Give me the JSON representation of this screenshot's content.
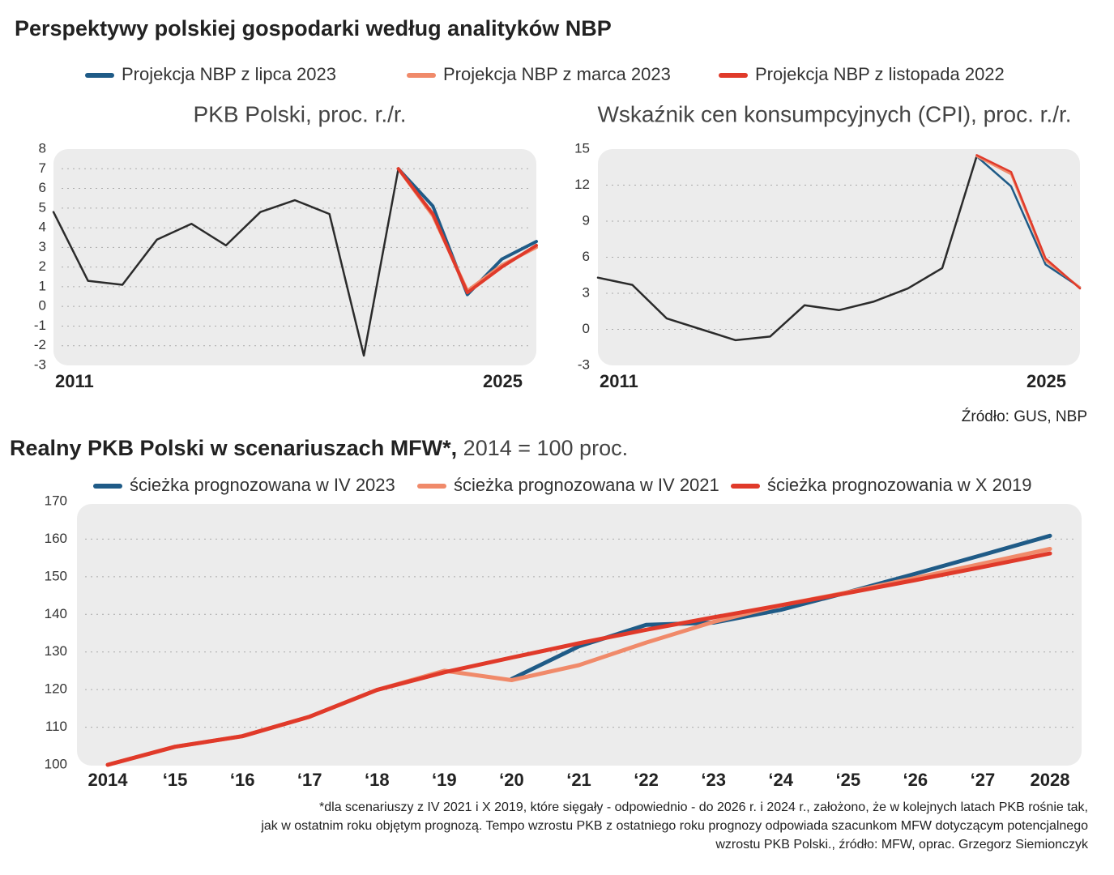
{
  "title": "Perspektywy polskiej gospodarki według analityków NBP",
  "source": "Źródło: GUS, NBP",
  "footnote": [
    "*dla scenariuszy z IV 2021 i X 2019, które sięgały - odpowiednio - do 2026 r. i 2024 r., założono, że w kolejnych latach PKB rośnie tak,",
    "jak w ostatnim roku objętym prognozą. Tempo wzrostu PKB z ostatniego roku prognozy odpowiada szacunkom MFW dotyczącym potencjalnego",
    "wzrostu PKB Polski., źródło: MFW, oprac. Grzegorz Siemionczyk"
  ],
  "chart_data": [
    {
      "type": "line",
      "title": "PKB Polski, proc. r./r.",
      "x": [
        2011,
        2012,
        2013,
        2014,
        2015,
        2016,
        2017,
        2018,
        2019,
        2020,
        2021,
        2022,
        2023,
        2024,
        2025
      ],
      "xlim": [
        2011,
        2025
      ],
      "xticks": [
        2011,
        2025
      ],
      "ylim": [
        -3,
        8
      ],
      "yticks": [
        -3,
        -2,
        -1,
        0,
        1,
        2,
        3,
        4,
        5,
        6,
        7,
        8
      ],
      "grid": true,
      "series": [
        {
          "color": "#2b2b2b",
          "values": [
            4.8,
            1.3,
            1.1,
            3.4,
            4.2,
            3.1,
            4.8,
            5.4,
            4.7,
            -2.5,
            7.0,
            null,
            null,
            null,
            null
          ]
        },
        {
          "name": "Projekcja NBP z lipca 2023",
          "color": "#1f5b87",
          "values": [
            null,
            null,
            null,
            null,
            null,
            null,
            null,
            null,
            null,
            null,
            7.0,
            5.1,
            0.6,
            2.4,
            3.3
          ]
        },
        {
          "name": "Projekcja NBP z marca 2023",
          "color": "#f08a6a",
          "values": [
            null,
            null,
            null,
            null,
            null,
            null,
            null,
            null,
            null,
            null,
            7.0,
            4.6,
            0.8,
            2.1,
            3.0
          ]
        },
        {
          "name": "Projekcja NBP z listopada 2022",
          "color": "#e03a2a",
          "values": [
            null,
            null,
            null,
            null,
            null,
            null,
            null,
            null,
            null,
            null,
            7.0,
            4.7,
            0.7,
            2.0,
            3.1
          ]
        }
      ]
    },
    {
      "type": "line",
      "title": "Wskaźnik cen konsumpcyjnych (CPI), proc. r./r.",
      "x": [
        2011,
        2012,
        2013,
        2014,
        2015,
        2016,
        2017,
        2018,
        2019,
        2020,
        2021,
        2022,
        2023,
        2024,
        2025
      ],
      "xlim": [
        2011,
        2025
      ],
      "xticks": [
        2011,
        2025
      ],
      "ylim": [
        -3,
        15
      ],
      "yticks": [
        -3,
        0,
        3,
        6,
        9,
        12,
        15
      ],
      "grid": true,
      "series": [
        {
          "color": "#2b2b2b",
          "values": [
            4.3,
            3.7,
            0.9,
            0.0,
            -0.9,
            -0.6,
            2.0,
            1.6,
            2.3,
            3.4,
            5.1,
            14.4,
            null,
            null,
            null
          ]
        },
        {
          "color": "#1f5b87",
          "values": [
            null,
            null,
            null,
            null,
            null,
            null,
            null,
            null,
            null,
            null,
            null,
            14.4,
            11.9,
            5.4,
            3.5
          ]
        },
        {
          "color": "#f08a6a",
          "values": [
            null,
            null,
            null,
            null,
            null,
            null,
            null,
            null,
            null,
            null,
            null,
            14.4,
            12.9,
            5.7,
            3.5
          ]
        },
        {
          "color": "#e03a2a",
          "values": [
            null,
            null,
            null,
            null,
            null,
            null,
            null,
            null,
            null,
            null,
            null,
            14.5,
            13.1,
            5.9,
            3.4
          ]
        }
      ]
    },
    {
      "type": "line",
      "title": "Realny PKB Polski w scenariuszach MFW*,",
      "subtitle": " 2014 = 100 proc.",
      "categories": [
        "2014",
        "‘15",
        "‘16",
        "‘17",
        "‘18",
        "‘19",
        "‘20",
        "‘21",
        "‘22",
        "‘23",
        "‘24",
        "‘25",
        "‘26",
        "‘27",
        "2028"
      ],
      "ylim": [
        100,
        170
      ],
      "yticks": [
        100,
        110,
        120,
        130,
        140,
        150,
        160,
        170
      ],
      "grid": true,
      "series": [
        {
          "name": "ścieżka prognozowana w IV 2023",
          "color": "#1f5b87",
          "values": [
            null,
            null,
            null,
            null,
            null,
            null,
            122.8,
            131.5,
            137.2,
            137.8,
            141.2,
            145.9,
            150.8,
            155.8,
            160.9
          ]
        },
        {
          "name": "ścieżka prognozowana w IV 2021",
          "color": "#f08a6a",
          "values": [
            100,
            104.8,
            107.6,
            112.8,
            119.9,
            125.0,
            122.5,
            126.5,
            132.5,
            138.0,
            142.4,
            145.9,
            149.7,
            153.5,
            157.4
          ]
        },
        {
          "name": "ścieżka prognozowania w X 2019",
          "color": "#e03a2a",
          "values": [
            100,
            104.8,
            107.6,
            112.8,
            119.9,
            124.6,
            128.5,
            132.3,
            135.9,
            139.2,
            142.4,
            145.7,
            149.1,
            152.6,
            156.2
          ]
        }
      ]
    }
  ]
}
